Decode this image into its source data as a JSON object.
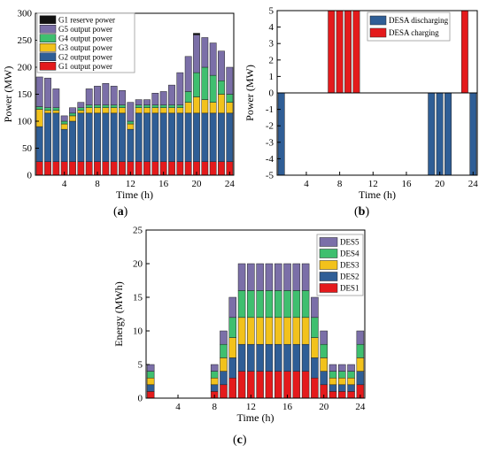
{
  "panels": {
    "a": {
      "label_open": "(",
      "label_letter": "a",
      "label_close": ")"
    },
    "b": {
      "label_open": "(",
      "label_letter": "b",
      "label_close": ")"
    },
    "c": {
      "label_open": "(",
      "label_letter": "c",
      "label_close": ")"
    }
  },
  "colors": {
    "G1 reserve power": "#111111",
    "G5 output power": "#7b6fa8",
    "G4 output power": "#3fbf6f",
    "G3 output power": "#f2c21c",
    "G2 output power": "#2f5e96",
    "G1 output power": "#e41a1c",
    "DESA discharging": "#2f5e96",
    "DESA charging": "#e41a1c",
    "DES5": "#7b6fa8",
    "DES4": "#3fbf6f",
    "DES3": "#f2c21c",
    "DES2": "#2f5e96",
    "DES1": "#e41a1c"
  },
  "chart_data": [
    {
      "id": "a",
      "type": "bar",
      "stacked": true,
      "xlabel": "Time (h)",
      "ylabel": "Power (MW)",
      "ylim": [
        0,
        300
      ],
      "yticks": [
        0,
        50,
        100,
        150,
        200,
        250,
        300
      ],
      "xlim": [
        0.5,
        24.5
      ],
      "xticks": [
        4,
        8,
        12,
        16,
        20,
        24
      ],
      "legend_position": "top-left",
      "categories": [
        1,
        2,
        3,
        4,
        5,
        6,
        7,
        8,
        9,
        10,
        11,
        12,
        13,
        14,
        15,
        16,
        17,
        18,
        19,
        20,
        21,
        22,
        23,
        24
      ],
      "series": [
        {
          "name": "G1 output power",
          "values": [
            25,
            25,
            25,
            25,
            25,
            25,
            25,
            25,
            25,
            25,
            25,
            25,
            25,
            25,
            25,
            25,
            25,
            25,
            25,
            25,
            25,
            25,
            25,
            25
          ]
        },
        {
          "name": "G2 output power",
          "values": [
            65,
            90,
            90,
            60,
            75,
            90,
            90,
            90,
            90,
            90,
            90,
            60,
            90,
            90,
            90,
            90,
            90,
            90,
            90,
            90,
            90,
            90,
            90,
            90
          ]
        },
        {
          "name": "G3 output power",
          "values": [
            32,
            5,
            5,
            10,
            10,
            5,
            10,
            10,
            10,
            10,
            10,
            10,
            10,
            10,
            10,
            10,
            10,
            10,
            20,
            30,
            25,
            20,
            35,
            20
          ]
        },
        {
          "name": "G4 output power",
          "values": [
            5,
            5,
            5,
            5,
            5,
            5,
            5,
            5,
            5,
            5,
            5,
            5,
            5,
            5,
            5,
            5,
            5,
            5,
            20,
            45,
            60,
            50,
            25,
            15
          ]
        },
        {
          "name": "G5 output power",
          "values": [
            55,
            55,
            35,
            10,
            10,
            10,
            30,
            35,
            40,
            35,
            27,
            35,
            10,
            10,
            22,
            25,
            37,
            60,
            65,
            70,
            55,
            60,
            55,
            50
          ]
        },
        {
          "name": "G1 reserve power",
          "values": [
            0,
            0,
            0,
            0,
            0,
            0,
            0,
            0,
            0,
            0,
            0,
            0,
            0,
            0,
            0,
            0,
            0,
            0,
            0,
            3,
            0,
            0,
            0,
            0
          ]
        }
      ]
    },
    {
      "id": "b",
      "type": "bar",
      "xlabel": "Time (h)",
      "ylabel": "Power (MW)",
      "ylim": [
        -5,
        5
      ],
      "yticks": [
        -5,
        -4,
        -3,
        -2,
        -1,
        0,
        1,
        2,
        3,
        4,
        5
      ],
      "xlim": [
        0.5,
        24.5
      ],
      "xticks": [
        4,
        8,
        12,
        16,
        20,
        24
      ],
      "legend_position": "top-right",
      "categories": [
        1,
        2,
        3,
        4,
        5,
        6,
        7,
        8,
        9,
        10,
        11,
        12,
        13,
        14,
        15,
        16,
        17,
        18,
        19,
        20,
        21,
        22,
        23,
        24
      ],
      "series": [
        {
          "name": "DESA discharging",
          "values": [
            -5,
            0,
            0,
            0,
            0,
            0,
            0,
            0,
            0,
            0,
            0,
            0,
            0,
            0,
            0,
            0,
            0,
            0,
            -5,
            -5,
            -5,
            0,
            0,
            -5
          ]
        },
        {
          "name": "DESA charging",
          "values": [
            0,
            0,
            0,
            0,
            0,
            0,
            5,
            5,
            5,
            5,
            0,
            0,
            0,
            0,
            0,
            0,
            0,
            0,
            0,
            0,
            0,
            0,
            5,
            0
          ]
        }
      ]
    },
    {
      "id": "c",
      "type": "bar",
      "stacked": true,
      "xlabel": "Time (h)",
      "ylabel": "Energy (MWh)",
      "ylim": [
        0,
        25
      ],
      "yticks": [
        0,
        5,
        10,
        15,
        20,
        25
      ],
      "xlim": [
        0.5,
        24.5
      ],
      "xticks": [
        4,
        8,
        12,
        16,
        20,
        24
      ],
      "legend_position": "top-right",
      "categories": [
        1,
        2,
        3,
        4,
        5,
        6,
        7,
        8,
        9,
        10,
        11,
        12,
        13,
        14,
        15,
        16,
        17,
        18,
        19,
        20,
        21,
        22,
        23,
        24
      ],
      "series": [
        {
          "name": "DES1",
          "values": [
            1,
            0,
            0,
            0,
            0,
            0,
            0,
            1,
            2,
            3,
            4,
            4,
            4,
            4,
            4,
            4,
            4,
            4,
            3,
            2,
            1,
            1,
            1,
            2
          ]
        },
        {
          "name": "DES2",
          "values": [
            1,
            0,
            0,
            0,
            0,
            0,
            0,
            1,
            2,
            3,
            4,
            4,
            4,
            4,
            4,
            4,
            4,
            4,
            3,
            2,
            1,
            1,
            1,
            2
          ]
        },
        {
          "name": "DES3",
          "values": [
            1,
            0,
            0,
            0,
            0,
            0,
            0,
            1,
            2,
            3,
            4,
            4,
            4,
            4,
            4,
            4,
            4,
            4,
            3,
            2,
            1,
            1,
            1,
            2
          ]
        },
        {
          "name": "DES4",
          "values": [
            1,
            0,
            0,
            0,
            0,
            0,
            0,
            1,
            2,
            3,
            4,
            4,
            4,
            4,
            4,
            4,
            4,
            4,
            3,
            2,
            1,
            1,
            1,
            2
          ]
        },
        {
          "name": "DES5",
          "values": [
            1,
            0,
            0,
            0,
            0,
            0,
            0,
            1,
            2,
            3,
            4,
            4,
            4,
            4,
            4,
            4,
            4,
            4,
            3,
            2,
            1,
            1,
            1,
            2
          ]
        }
      ]
    }
  ]
}
